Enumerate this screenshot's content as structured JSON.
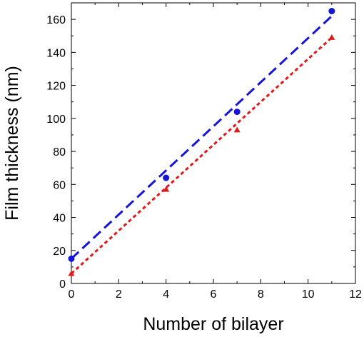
{
  "chart_data": {
    "type": "scatter",
    "xlabel": "Number of bilayer",
    "ylabel": "Film thickness (nm)",
    "xlim": [
      0,
      12
    ],
    "ylim": [
      0,
      170
    ],
    "x_ticks": [
      "0",
      "2",
      "4",
      "6",
      "8",
      "10",
      "12"
    ],
    "y_ticks": [
      "0",
      "20",
      "40",
      "60",
      "80",
      "100",
      "120",
      "140",
      "160"
    ],
    "grid": false,
    "series": [
      {
        "marker": "circle",
        "color": "#1515d8",
        "line_style": "dashed",
        "points": [
          {
            "x": 0,
            "y": 15
          },
          {
            "x": 4,
            "y": 64
          },
          {
            "x": 7,
            "y": 104
          },
          {
            "x": 11,
            "y": 165
          }
        ],
        "fit": {
          "x": [
            0,
            11
          ],
          "y": [
            15,
            162
          ]
        }
      },
      {
        "marker": "triangle",
        "color": "#e01a1a",
        "line_style": "dotted",
        "points": [
          {
            "x": 0,
            "y": 6
          },
          {
            "x": 4,
            "y": 57
          },
          {
            "x": 7,
            "y": 93
          },
          {
            "x": 11,
            "y": 149
          }
        ],
        "fit": {
          "x": [
            0,
            11
          ],
          "y": [
            6,
            149
          ]
        }
      }
    ]
  }
}
